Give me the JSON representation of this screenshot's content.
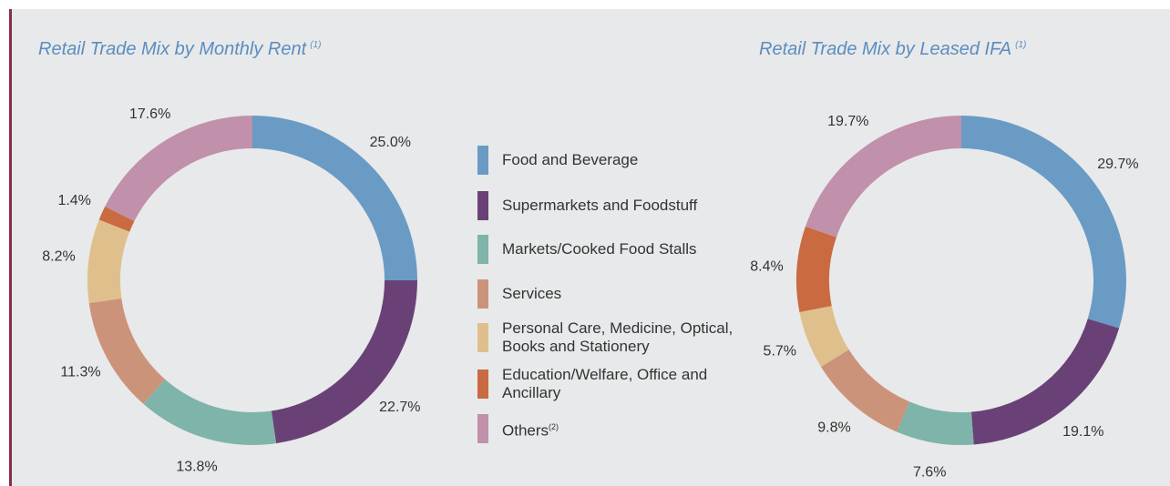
{
  "chart_data": [
    {
      "type": "donut",
      "title": "Retail Trade Mix by Monthly Rent",
      "title_note": "(1)",
      "categories": [
        "Food and Beverage",
        "Supermarkets and Foodstuff",
        "Markets/Cooked Food Stalls",
        "Services",
        "Personal Care, Medicine, Optical, Books and Stationery",
        "Education/Welfare, Office and Ancillary",
        "Others"
      ],
      "category_notes": [
        null,
        null,
        null,
        null,
        null,
        null,
        "(2)"
      ],
      "values": [
        25.0,
        22.7,
        13.8,
        11.3,
        8.2,
        1.4,
        17.6
      ],
      "value_labels": [
        "25.0%",
        "22.7%",
        "13.8%",
        "11.3%",
        "8.2%",
        "1.4%",
        "17.6%"
      ],
      "colors": [
        "#6a9bc4",
        "#6a4177",
        "#7eb4aa",
        "#cc937b",
        "#dfc08c",
        "#c96a40",
        "#c190ab"
      ]
    },
    {
      "type": "donut",
      "title": "Retail Trade Mix by Leased IFA",
      "title_note": "(1)",
      "categories": [
        "Food and Beverage",
        "Supermarkets and Foodstuff",
        "Markets/Cooked Food Stalls",
        "Services",
        "Personal Care, Medicine, Optical, Books and Stationery",
        "Education/Welfare, Office and Ancillary",
        "Others"
      ],
      "values": [
        29.7,
        19.1,
        7.6,
        9.8,
        5.7,
        8.4,
        19.7
      ],
      "value_labels": [
        "29.7%",
        "19.1%",
        "7.6%",
        "9.8%",
        "5.7%",
        "8.4%",
        "19.7%"
      ],
      "colors": [
        "#6a9bc4",
        "#6a4177",
        "#7eb4aa",
        "#cc937b",
        "#dfc08c",
        "#c96a40",
        "#c190ab"
      ]
    }
  ]
}
